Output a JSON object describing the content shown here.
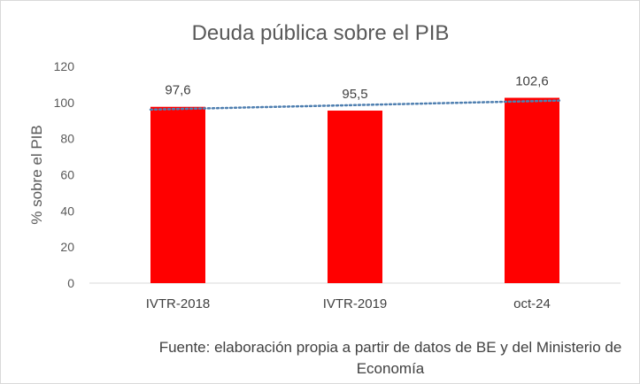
{
  "chart_data": {
    "type": "bar",
    "title": "Deuda pública sobre el PIB",
    "xlabel": "",
    "ylabel": "% sobre el PIB",
    "categories": [
      "IVTR-2018",
      "IVTR-2019",
      "oct-24"
    ],
    "series": [
      {
        "values": [
          97.6,
          95.5,
          102.6
        ],
        "data_labels": [
          "97,6",
          "95,5",
          "102,6"
        ],
        "color": "#ff0000"
      }
    ],
    "trendline": {
      "type": "linear",
      "style": "dotted",
      "color": "#4f7fb0"
    },
    "ylim": [
      0,
      120
    ],
    "yticks": [
      0,
      20,
      40,
      60,
      80,
      100,
      120
    ],
    "grid": false,
    "legend": "none"
  },
  "source_note": "Fuente: elaboración propia a partir de datos de BE y del Ministerio de Economía"
}
